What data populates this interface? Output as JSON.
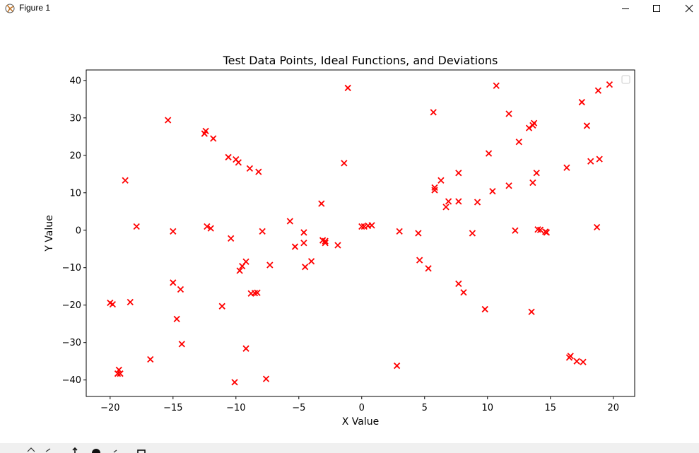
{
  "window": {
    "title": "Figure 1",
    "app_icon": "matplotlib-icon",
    "controls": [
      "minimize-icon",
      "maximize-icon",
      "close-icon"
    ]
  },
  "toolbar": {
    "icons": [
      "home-icon",
      "back-icon",
      "forward-icon",
      "pan-icon",
      "zoom-icon",
      "configure-icon",
      "save-icon"
    ]
  },
  "chart_data": {
    "type": "scatter",
    "title": "Test Data Points, Ideal Functions, and Deviations",
    "xlabel": "X Value",
    "ylabel": "Y Value",
    "xlim": [
      -21.9,
      21.7
    ],
    "ylim": [
      -44.4,
      42.8
    ],
    "xticks": [
      -20,
      -15,
      -10,
      -5,
      0,
      5,
      10,
      15,
      20
    ],
    "yticks": [
      -40,
      -30,
      -20,
      -10,
      0,
      10,
      20,
      30,
      40
    ],
    "grid": false,
    "legend": "top-right",
    "marker": "x",
    "color": "#ff0000",
    "series": [
      {
        "points": [
          [
            -20.0,
            -19.4
          ],
          [
            -19.8,
            -19.8
          ],
          [
            -19.3,
            -37.3
          ],
          [
            -19.4,
            -38.3
          ],
          [
            -19.2,
            -38.3
          ],
          [
            -18.8,
            13.3
          ],
          [
            -18.4,
            -19.2
          ],
          [
            -17.9,
            1.0
          ],
          [
            -16.8,
            -34.5
          ],
          [
            -15.4,
            29.4
          ],
          [
            -15.0,
            -0.3
          ],
          [
            -15.0,
            -14.0
          ],
          [
            -14.7,
            -23.7
          ],
          [
            -14.4,
            -15.8
          ],
          [
            -14.3,
            -30.4
          ],
          [
            -12.5,
            25.8
          ],
          [
            -12.4,
            26.5
          ],
          [
            -12.3,
            1.0
          ],
          [
            -12.0,
            0.5
          ],
          [
            -11.8,
            24.5
          ],
          [
            -11.1,
            -20.3
          ],
          [
            -10.6,
            19.5
          ],
          [
            -10.4,
            -2.2
          ],
          [
            -10.1,
            -40.6
          ],
          [
            -10.0,
            18.9
          ],
          [
            -9.8,
            18.1
          ],
          [
            -9.7,
            -10.8
          ],
          [
            -9.5,
            -9.6
          ],
          [
            -9.2,
            -31.6
          ],
          [
            -9.2,
            -8.4
          ],
          [
            -8.9,
            16.5
          ],
          [
            -8.8,
            -16.9
          ],
          [
            -8.5,
            -16.8
          ],
          [
            -8.3,
            -16.7
          ],
          [
            -8.2,
            15.6
          ],
          [
            -7.9,
            -0.3
          ],
          [
            -7.6,
            -39.7
          ],
          [
            -7.3,
            -9.3
          ],
          [
            -5.7,
            2.4
          ],
          [
            -5.3,
            -4.4
          ],
          [
            -4.6,
            -0.6
          ],
          [
            -4.6,
            -3.4
          ],
          [
            -4.5,
            -9.8
          ],
          [
            -4.0,
            -8.3
          ],
          [
            -3.2,
            7.1
          ],
          [
            -3.1,
            -2.7
          ],
          [
            -2.9,
            -2.9
          ],
          [
            -2.9,
            -3.4
          ],
          [
            -1.9,
            -4.0
          ],
          [
            -1.4,
            17.9
          ],
          [
            -1.1,
            38.0
          ],
          [
            0.0,
            1.0
          ],
          [
            0.2,
            1.0
          ],
          [
            0.5,
            1.2
          ],
          [
            0.8,
            1.3
          ],
          [
            2.8,
            -36.2
          ],
          [
            3.0,
            -0.3
          ],
          [
            4.5,
            -0.8
          ],
          [
            4.6,
            -8.0
          ],
          [
            5.3,
            -10.2
          ],
          [
            5.7,
            31.5
          ],
          [
            5.8,
            10.7
          ],
          [
            5.8,
            11.4
          ],
          [
            6.3,
            13.3
          ],
          [
            6.7,
            6.2
          ],
          [
            6.9,
            7.7
          ],
          [
            7.7,
            15.3
          ],
          [
            7.7,
            7.7
          ],
          [
            7.7,
            -14.3
          ],
          [
            8.1,
            -16.6
          ],
          [
            8.8,
            -0.8
          ],
          [
            9.2,
            7.5
          ],
          [
            9.8,
            -21.1
          ],
          [
            10.1,
            20.5
          ],
          [
            10.4,
            10.4
          ],
          [
            10.7,
            38.6
          ],
          [
            11.7,
            31.1
          ],
          [
            11.7,
            11.9
          ],
          [
            12.2,
            -0.1
          ],
          [
            12.5,
            23.6
          ],
          [
            13.3,
            27.3
          ],
          [
            13.5,
            -21.8
          ],
          [
            13.6,
            28.0
          ],
          [
            13.6,
            12.7
          ],
          [
            13.7,
            28.6
          ],
          [
            13.9,
            15.3
          ],
          [
            14.0,
            0.2
          ],
          [
            14.2,
            0.1
          ],
          [
            14.6,
            -0.4
          ],
          [
            14.7,
            -0.6
          ],
          [
            16.3,
            16.7
          ],
          [
            16.5,
            -34.0
          ],
          [
            16.6,
            -33.6
          ],
          [
            17.1,
            -35.0
          ],
          [
            17.5,
            34.2
          ],
          [
            17.6,
            -35.2
          ],
          [
            17.9,
            27.9
          ],
          [
            18.2,
            18.4
          ],
          [
            18.7,
            0.8
          ],
          [
            18.8,
            37.3
          ],
          [
            18.9,
            19.0
          ],
          [
            19.7,
            38.9
          ]
        ]
      }
    ]
  }
}
